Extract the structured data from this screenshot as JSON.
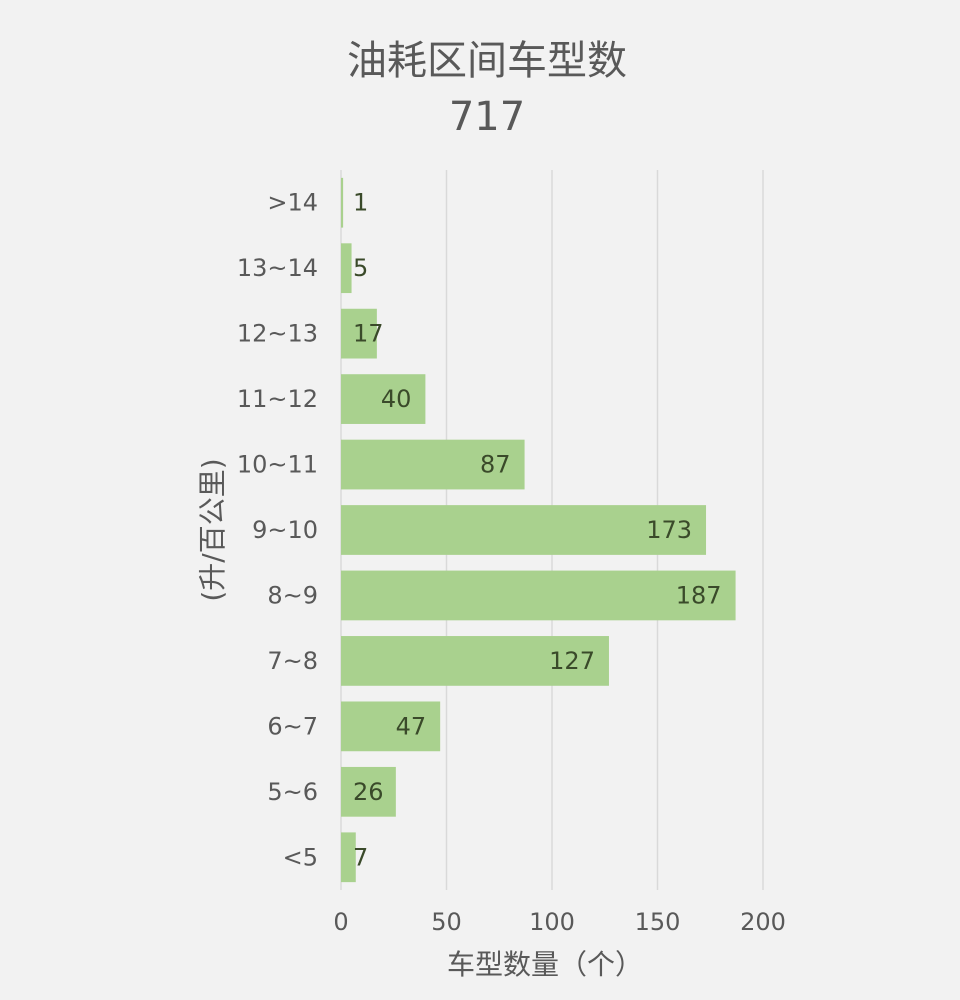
{
  "chart_data": {
    "type": "bar",
    "orientation": "horizontal",
    "title": "油耗区间车型数",
    "subtitle": "717",
    "xlabel": "车型数量（个）",
    "ylabel": "(升/百公里)",
    "categories": [
      ">14",
      "13~14",
      "12~13",
      "11~12",
      "10~11",
      "9~10",
      "8~9",
      "7~8",
      "6~7",
      "5~6",
      "<5"
    ],
    "values": [
      1,
      5,
      17,
      40,
      87,
      173,
      187,
      127,
      47,
      26,
      7
    ],
    "xlim": [
      0,
      200
    ],
    "xticks": [
      "0",
      "50",
      "100",
      "150",
      "200"
    ],
    "grid": "vertical",
    "legend": "none",
    "bar_color": "#a9d18e"
  }
}
